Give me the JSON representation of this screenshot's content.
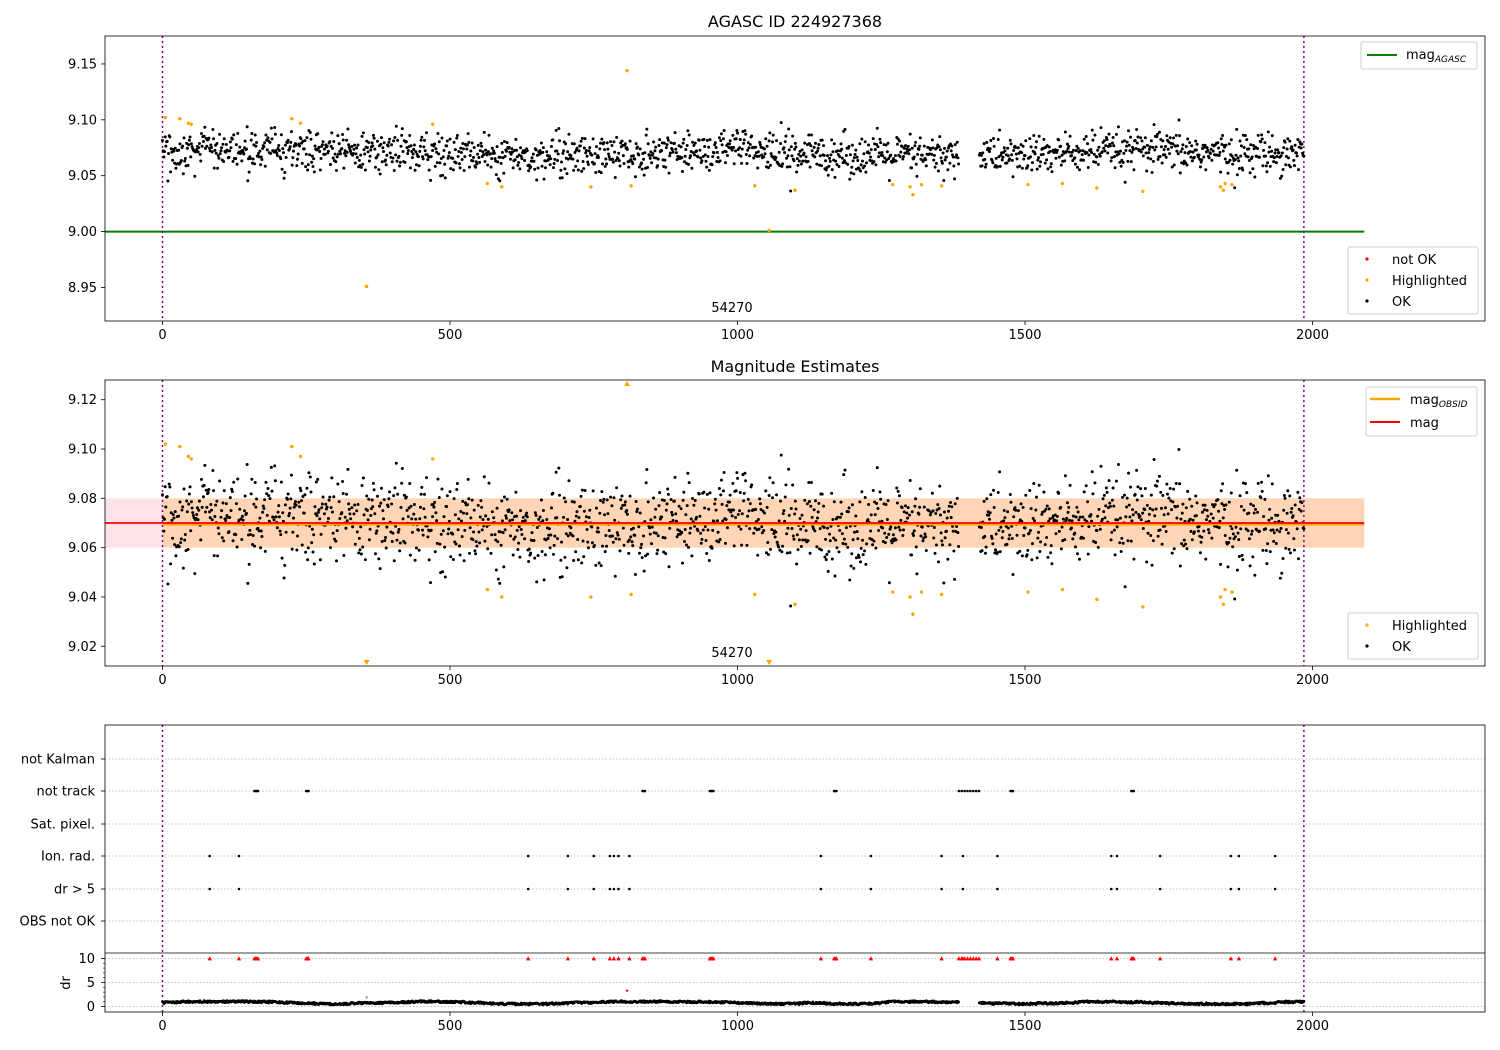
{
  "chart_data": [
    {
      "type": "scatter",
      "title": "AGASC ID 224927368",
      "xlim": [
        -100,
        2300
      ],
      "ylim": [
        8.92,
        9.175
      ],
      "xticks": [
        0,
        500,
        1000,
        1500,
        2000
      ],
      "yticks": [
        "8.95",
        "9.00",
        "9.05",
        "9.10",
        "9.15"
      ],
      "annotation": "54270",
      "vlines": [
        0,
        1985
      ],
      "hline": {
        "label": "mag",
        "label_sub": "AGASC",
        "value": 9.0,
        "x_range": [
          0,
          2090
        ],
        "color": "#008000"
      },
      "scatter_legend": [
        {
          "label": "not OK",
          "color": "#ff0000"
        },
        {
          "label": "Highlighted",
          "color": "#ffa500"
        },
        {
          "label": "OK",
          "color": "#000000"
        }
      ],
      "ok_model": {
        "x_range": [
          0,
          1985
        ],
        "n": 1700,
        "gap": [
          1385,
          1420
        ],
        "center": 9.07,
        "spread": 0.009
      },
      "highlighted_points": [
        [
          5,
          9.102
        ],
        [
          30,
          9.101
        ],
        [
          45,
          9.097
        ],
        [
          50,
          9.096
        ],
        [
          225,
          9.101
        ],
        [
          240,
          9.097
        ],
        [
          470,
          9.096
        ],
        [
          565,
          9.043
        ],
        [
          590,
          9.04
        ],
        [
          745,
          9.04
        ],
        [
          808,
          9.144
        ],
        [
          815,
          9.041
        ],
        [
          1030,
          9.041
        ],
        [
          1055,
          9.001
        ],
        [
          1100,
          9.037
        ],
        [
          1270,
          9.042
        ],
        [
          1300,
          9.04
        ],
        [
          1305,
          9.033
        ],
        [
          1320,
          9.042
        ],
        [
          1355,
          9.041
        ],
        [
          1505,
          9.042
        ],
        [
          1565,
          9.043
        ],
        [
          1625,
          9.039
        ],
        [
          1705,
          9.036
        ],
        [
          1840,
          9.04
        ],
        [
          1845,
          9.037
        ],
        [
          1848,
          9.043
        ],
        [
          1860,
          9.042
        ],
        [
          355,
          8.951
        ]
      ]
    },
    {
      "type": "scatter",
      "title": "Magnitude Estimates",
      "xlim": [
        -100,
        2300
      ],
      "ylim": [
        9.012,
        9.128
      ],
      "xticks": [
        0,
        500,
        1000,
        1500,
        2000
      ],
      "yticks": [
        "9.02",
        "9.04",
        "9.06",
        "9.08",
        "9.10",
        "9.12"
      ],
      "annotation": "54270",
      "vlines": [
        0,
        1985
      ],
      "lines": [
        {
          "label": "mag",
          "label_sub": "OBSID",
          "value": 9.0695,
          "color": "#ffa500"
        },
        {
          "label": "mag",
          "value": 9.07,
          "color": "#ff0000"
        }
      ],
      "band": {
        "low": 9.06,
        "high": 9.08,
        "x_range": [
          -100,
          2090
        ]
      },
      "scatter_legend": [
        {
          "label": "Highlighted",
          "color": "#ffa500"
        },
        {
          "label": "OK",
          "color": "#000000"
        }
      ],
      "ok_model": {
        "x_range": [
          0,
          1985
        ],
        "n": 1700,
        "gap": [
          1385,
          1420
        ],
        "center": 9.07,
        "spread": 0.009
      },
      "highlighted_points": [
        [
          5,
          9.102
        ],
        [
          30,
          9.101
        ],
        [
          45,
          9.097
        ],
        [
          50,
          9.096
        ],
        [
          225,
          9.101
        ],
        [
          240,
          9.097
        ],
        [
          470,
          9.096
        ],
        [
          565,
          9.043
        ],
        [
          590,
          9.04
        ],
        [
          745,
          9.04
        ],
        [
          815,
          9.041
        ],
        [
          1030,
          9.041
        ],
        [
          1100,
          9.037
        ],
        [
          1270,
          9.042
        ],
        [
          1300,
          9.04
        ],
        [
          1305,
          9.033
        ],
        [
          1320,
          9.042
        ],
        [
          1355,
          9.041
        ],
        [
          1505,
          9.042
        ],
        [
          1565,
          9.043
        ],
        [
          1625,
          9.039
        ],
        [
          1705,
          9.036
        ],
        [
          1840,
          9.04
        ],
        [
          1845,
          9.037
        ],
        [
          1848,
          9.043
        ],
        [
          1860,
          9.042
        ]
      ],
      "out_of_range_markers": [
        {
          "x": 808,
          "direction": "up"
        },
        {
          "x": 355,
          "direction": "down"
        },
        {
          "x": 1055,
          "direction": "down"
        }
      ]
    },
    {
      "type": "scatter",
      "xlim": [
        -100,
        2300
      ],
      "xticks": [
        0,
        500,
        1000,
        1500,
        2000
      ],
      "vlines": [
        0,
        1985
      ],
      "flag_rows": [
        "not Kalman",
        "not track",
        "Sat. pixel.",
        "Ion. rad.",
        "dr > 5",
        "OBS not OK"
      ],
      "flags": {
        "not Kalman": [],
        "not track": [
          160,
          162,
          164,
          166,
          250,
          252,
          254,
          835,
          837,
          839,
          952,
          954,
          956,
          958,
          1168,
          1170,
          1172,
          1385,
          1390,
          1395,
          1400,
          1405,
          1410,
          1415,
          1420,
          1475,
          1477,
          1479,
          1685,
          1687,
          1689
        ],
        "Sat. pixel.": [],
        "Ion. rad.": [
          82,
          133,
          636,
          705,
          750,
          778,
          785,
          793,
          812,
          1145,
          1232,
          1355,
          1392,
          1452,
          1650,
          1660,
          1735,
          1858,
          1872,
          1935
        ],
        "dr > 5": [
          82,
          133,
          636,
          705,
          750,
          778,
          785,
          793,
          812,
          1145,
          1232,
          1355,
          1392,
          1452,
          1650,
          1660,
          1735,
          1858,
          1872,
          1935
        ],
        "OBS not OK": []
      },
      "dr": {
        "ylabel": "dr",
        "ylim": [
          -0.5,
          10.5
        ],
        "yticks": [
          0,
          5,
          10
        ],
        "clip_value": 10,
        "outliers": [
          [
            808,
            3.3
          ],
          [
            355,
            1.9
          ]
        ],
        "baseline_model": {
          "x_range": [
            0,
            1985
          ],
          "n": 1700,
          "gap": [
            1385,
            1420
          ],
          "center": 0.8,
          "spread": 0.4
        }
      }
    }
  ]
}
